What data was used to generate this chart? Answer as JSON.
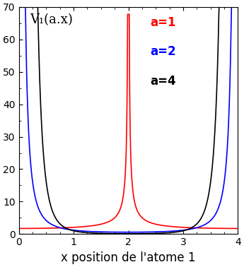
{
  "title": "V₁(a.x)",
  "xlabel": "x position de l'atome 1",
  "xlim": [
    0,
    4
  ],
  "ylim": [
    0,
    70
  ],
  "yticks": [
    0,
    10,
    20,
    30,
    40,
    50,
    60,
    70
  ],
  "xticks": [
    0,
    1,
    2,
    3,
    4
  ],
  "x2_formula": "2*a",
  "a_values": [
    1,
    2,
    4
  ],
  "colors": [
    "red",
    "blue",
    "black"
  ],
  "labels": [
    "a=1",
    "a=2",
    "a=4"
  ],
  "background_color": "#ffffff",
  "clip_ymax": 70,
  "epsilon": 0.015,
  "title_fontsize": 13,
  "label_fontsize": 12,
  "tick_fontsize": 10,
  "legend_fontsize": 12,
  "linewidth": 1.2,
  "n_sum": [
    -4,
    -3,
    -2,
    -1,
    0,
    1,
    2,
    3,
    4
  ],
  "period": 4.0
}
